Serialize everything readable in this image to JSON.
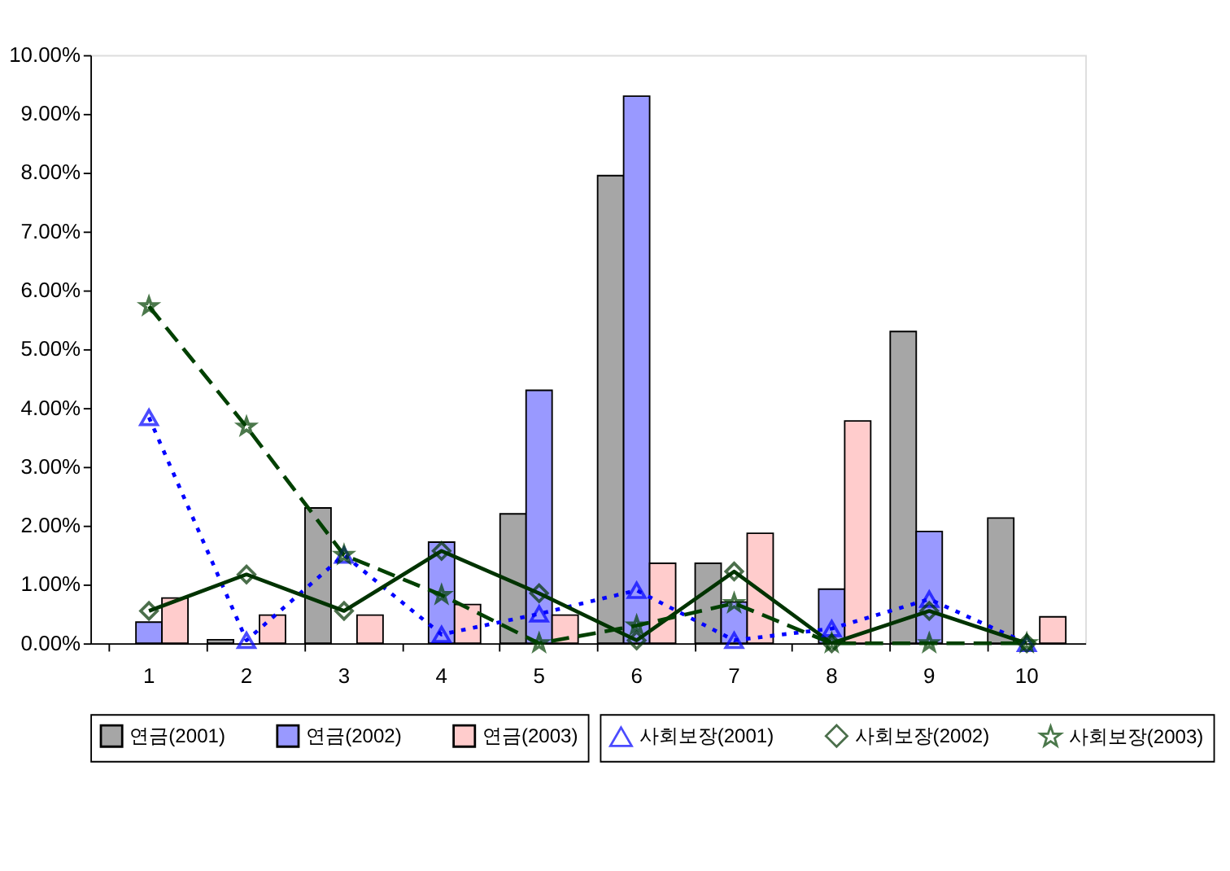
{
  "chart_data": {
    "type": "bar",
    "categories": [
      "1",
      "2",
      "3",
      "4",
      "5",
      "6",
      "7",
      "8",
      "9",
      "10"
    ],
    "series": [
      {
        "name": "연금(2001)",
        "color": "#a6a6a6",
        "values": [
          null,
          0.06,
          2.3,
          null,
          2.2,
          7.95,
          1.36,
          null,
          5.3,
          2.13
        ]
      },
      {
        "name": "연금(2002)",
        "color": "#9999ff",
        "values": [
          0.36,
          null,
          null,
          1.72,
          4.3,
          9.3,
          0.7,
          0.92,
          1.9,
          null
        ]
      },
      {
        "name": "연금(2003)",
        "color": "#ffcccc",
        "values": [
          0.77,
          0.48,
          0.48,
          0.66,
          0.48,
          1.36,
          1.87,
          3.78,
          null,
          0.45
        ]
      },
      {
        "name": "사회보장(2001)",
        "type": "line",
        "color": "#0000ff",
        "marker": "triangle",
        "line_style": "dotted",
        "values": [
          3.84,
          0.05,
          1.5,
          0.15,
          0.5,
          0.9,
          0.05,
          0.25,
          0.75,
          0
        ]
      },
      {
        "name": "사회보장(2002)",
        "type": "line",
        "color": "#003300",
        "marker": "diamond",
        "line_style": "solid",
        "values": [
          0.55,
          1.17,
          0.55,
          1.57,
          0.85,
          0.05,
          1.22,
          0,
          0.55,
          0
        ]
      },
      {
        "name": "사회보장(2003)",
        "type": "line",
        "color": "#004000",
        "marker": "star",
        "line_style": "dashed",
        "values": [
          5.73,
          3.68,
          1.5,
          0.82,
          0,
          0.3,
          0.68,
          0,
          0,
          0
        ]
      }
    ],
    "ylim": [
      0,
      10
    ],
    "yticks": [
      {
        "value": 0,
        "label": "0.00%"
      },
      {
        "value": 1,
        "label": "1.00%"
      },
      {
        "value": 2,
        "label": "2.00%"
      },
      {
        "value": 3,
        "label": "3.00%"
      },
      {
        "value": 4,
        "label": "4.00%"
      },
      {
        "value": 5,
        "label": "5.00%"
      },
      {
        "value": 6,
        "label": "6.00%"
      },
      {
        "value": 7,
        "label": "7.00%"
      },
      {
        "value": 8,
        "label": "8.00%"
      },
      {
        "value": 9,
        "label": "9.00%"
      },
      {
        "value": 10,
        "label": "10.00%"
      }
    ],
    "grid": false,
    "legend": "bottom"
  }
}
